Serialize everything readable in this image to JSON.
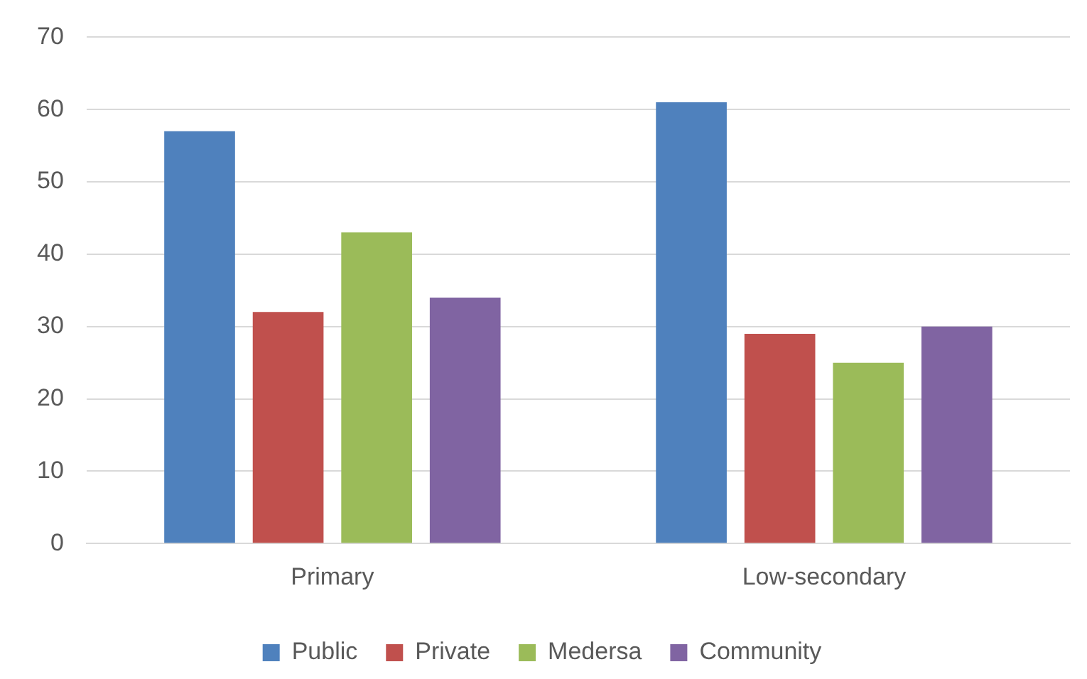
{
  "chart_data": {
    "type": "bar",
    "categories": [
      "Primary",
      "Low-secondary"
    ],
    "series": [
      {
        "name": "Public",
        "color": "#4f81bd",
        "values": [
          57,
          61
        ]
      },
      {
        "name": "Private",
        "color": "#c0504d",
        "values": [
          32,
          29
        ]
      },
      {
        "name": "Medersa",
        "color": "#9bbb59",
        "values": [
          43,
          25
        ]
      },
      {
        "name": "Community",
        "color": "#8064a2",
        "values": [
          34,
          30
        ]
      }
    ],
    "ylim": [
      0,
      70
    ],
    "yticks": [
      0,
      10,
      20,
      30,
      40,
      50,
      60,
      70
    ],
    "grid": "y",
    "legend": "bottom"
  }
}
